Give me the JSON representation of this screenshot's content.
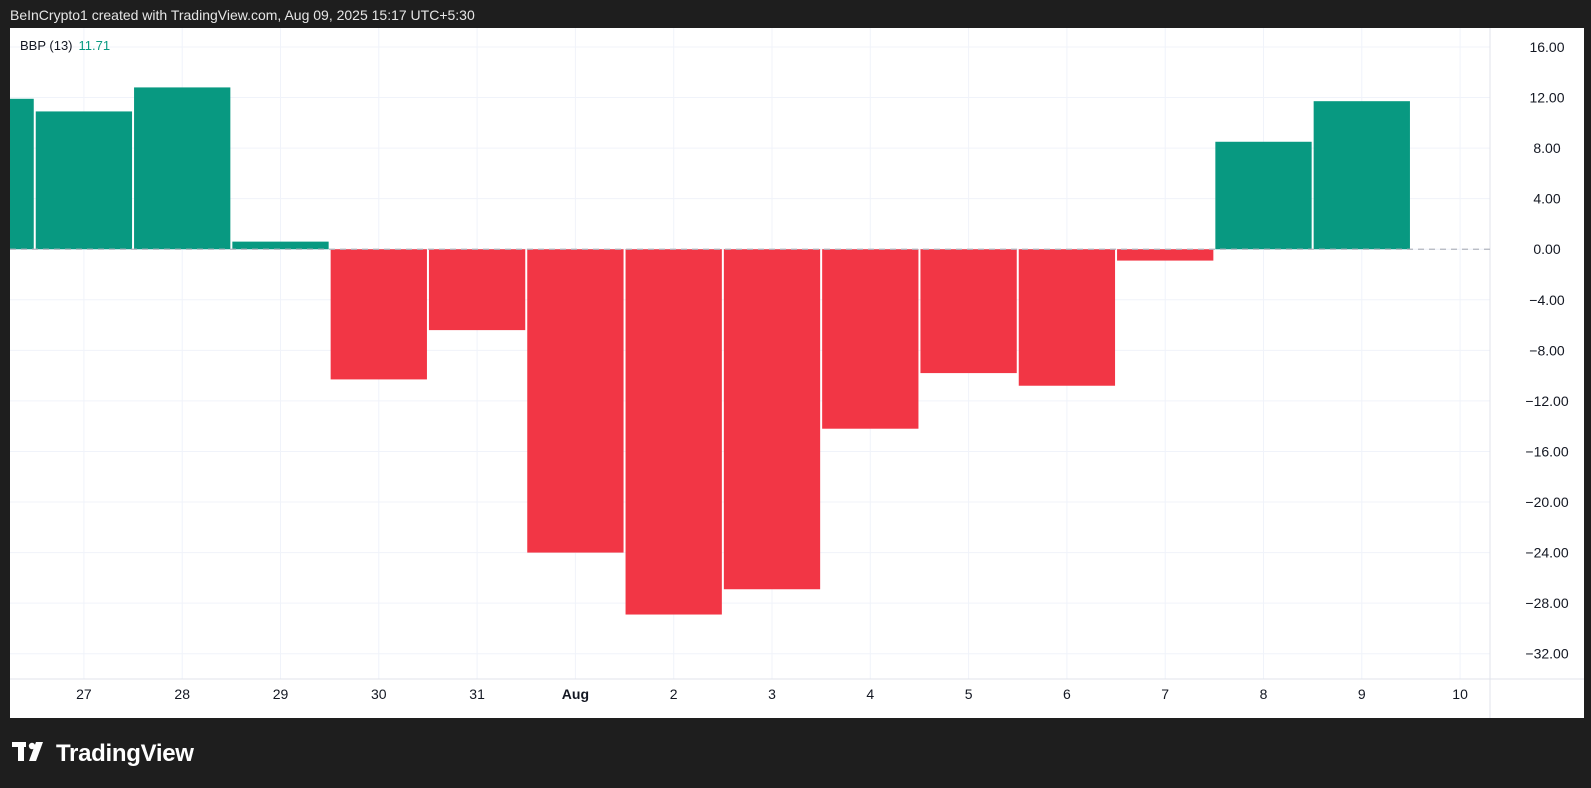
{
  "header": {
    "attribution": "BeInCrypto1 created with TradingView.com, Aug 09, 2025 15:17 UTC+5:30"
  },
  "legend": {
    "indicator": "BBP (13)",
    "value": "11.71"
  },
  "footer": {
    "brand": "TradingView",
    "logo_icon": "tradingview-logo-icon"
  },
  "colors": {
    "positive": "#089981",
    "negative": "#f23645",
    "grid": "#f0f3fa",
    "zero_line": "#b2b5be"
  },
  "chart_data": {
    "type": "bar",
    "title": "",
    "xlabel": "",
    "ylabel": "",
    "ylim": [
      -34,
      17.5
    ],
    "y_ticks": [
      "16.00",
      "12.00",
      "8.00",
      "4.00",
      "0.00",
      "−4.00",
      "−8.00",
      "−12.00",
      "−16.00",
      "−20.00",
      "−24.00",
      "−28.00",
      "−32.00"
    ],
    "y_tick_values": [
      16,
      12,
      8,
      4,
      0,
      -4,
      -8,
      -12,
      -16,
      -20,
      -24,
      -28,
      -32
    ],
    "x_ticks": [
      "27",
      "28",
      "29",
      "30",
      "31",
      "Aug",
      "2",
      "3",
      "4",
      "5",
      "6",
      "7",
      "8",
      "9",
      "10"
    ],
    "x_tick_bold": [
      "Aug"
    ],
    "categories": [
      "Jul 26",
      "Jul 27",
      "Jul 28",
      "Jul 29",
      "Jul 30",
      "Jul 31",
      "Aug 1",
      "Aug 2",
      "Aug 3",
      "Aug 4",
      "Aug 5",
      "Aug 6",
      "Aug 7",
      "Aug 8",
      "Aug 9"
    ],
    "series": [
      {
        "values": [
          11.9,
          10.9,
          12.8,
          0.6,
          -10.3,
          -6.4,
          -24.0,
          -28.9,
          -26.9,
          -14.2,
          -9.8,
          -10.8,
          -0.9,
          8.5,
          11.71
        ]
      }
    ],
    "grid": true,
    "legend_position": "top-left"
  }
}
